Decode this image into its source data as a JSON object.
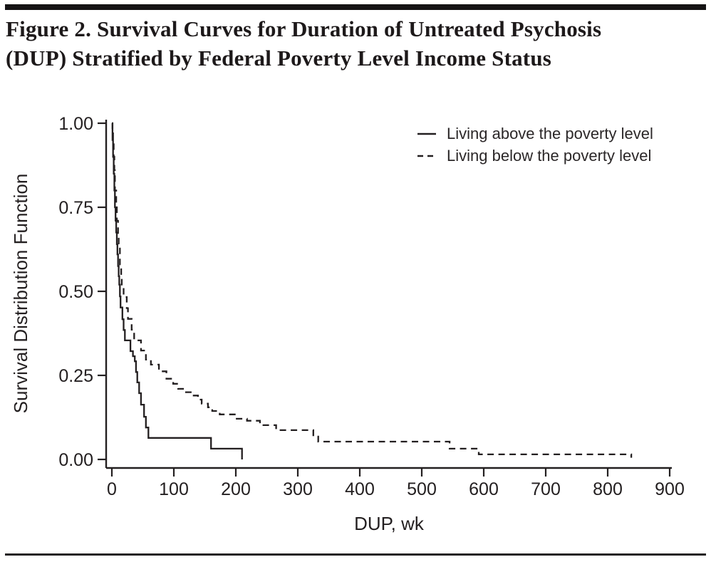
{
  "figure": {
    "title_line1": "Figure 2. Survival Curves for Duration of Untreated Psychosis",
    "title_line2": "(DUP) Stratified by Federal Poverty Level Income Status"
  },
  "colors": {
    "ink": "#231f20",
    "background": "#ffffff"
  },
  "chart_data": {
    "type": "line",
    "variant": "kaplan-meier-step-survival",
    "title": "Figure 2. Survival Curves for Duration of Untreated Psychosis (DUP) Stratified by Federal Poverty Level Income Status",
    "xlabel": "DUP, wk",
    "ylabel": "Survival Distribution Function",
    "xlim": [
      0,
      900
    ],
    "ylim": [
      0,
      1
    ],
    "x_ticks": [
      0,
      100,
      200,
      300,
      400,
      500,
      600,
      700,
      800,
      900
    ],
    "y_ticks": [
      {
        "value": 1.0,
        "label": "1.00"
      },
      {
        "value": 0.75,
        "label": "0.75"
      },
      {
        "value": 0.5,
        "label": "0.50"
      },
      {
        "value": 0.25,
        "label": "0.25"
      },
      {
        "value": 0.0,
        "label": "0.00"
      }
    ],
    "grid": false,
    "legend_position": "top-right-inside",
    "series": [
      {
        "name": "Living above the poverty level",
        "style": "solid",
        "points": [
          [
            0,
            1.0
          ],
          [
            1,
            0.95
          ],
          [
            2,
            0.9
          ],
          [
            3,
            0.85
          ],
          [
            4,
            0.8
          ],
          [
            5,
            0.75
          ],
          [
            6,
            0.71
          ],
          [
            7,
            0.675
          ],
          [
            8,
            0.64
          ],
          [
            9,
            0.61
          ],
          [
            10,
            0.575
          ],
          [
            11,
            0.545
          ],
          [
            12,
            0.52
          ],
          [
            13,
            0.485
          ],
          [
            14,
            0.452
          ],
          [
            17,
            0.417
          ],
          [
            19,
            0.385
          ],
          [
            21,
            0.354
          ],
          [
            30,
            0.322
          ],
          [
            34,
            0.307
          ],
          [
            37,
            0.292
          ],
          [
            39,
            0.26
          ],
          [
            41,
            0.229
          ],
          [
            44,
            0.197
          ],
          [
            47,
            0.163
          ],
          [
            52,
            0.127
          ],
          [
            55,
            0.095
          ],
          [
            59,
            0.064
          ],
          [
            160,
            0.032
          ],
          [
            210,
            0.0
          ]
        ]
      },
      {
        "name": "Living below the poverty level",
        "style": "dashed",
        "points": [
          [
            0,
            1.0
          ],
          [
            1,
            0.97
          ],
          [
            2,
            0.94
          ],
          [
            3,
            0.9
          ],
          [
            4,
            0.86
          ],
          [
            5,
            0.8
          ],
          [
            7,
            0.75
          ],
          [
            8,
            0.71
          ],
          [
            10,
            0.665
          ],
          [
            11,
            0.63
          ],
          [
            13,
            0.58
          ],
          [
            15,
            0.545
          ],
          [
            16,
            0.515
          ],
          [
            19,
            0.483
          ],
          [
            24,
            0.45
          ],
          [
            26,
            0.418
          ],
          [
            32,
            0.386
          ],
          [
            36,
            0.354
          ],
          [
            47,
            0.324
          ],
          [
            55,
            0.297
          ],
          [
            63,
            0.282
          ],
          [
            76,
            0.262
          ],
          [
            88,
            0.24
          ],
          [
            99,
            0.225
          ],
          [
            107,
            0.21
          ],
          [
            118,
            0.2
          ],
          [
            130,
            0.19
          ],
          [
            139,
            0.178
          ],
          [
            145,
            0.166
          ],
          [
            155,
            0.155
          ],
          [
            162,
            0.144
          ],
          [
            174,
            0.134
          ],
          [
            200,
            0.121
          ],
          [
            218,
            0.115
          ],
          [
            239,
            0.102
          ],
          [
            265,
            0.087
          ],
          [
            325,
            0.068
          ],
          [
            333,
            0.053
          ],
          [
            545,
            0.032
          ],
          [
            592,
            0.015
          ],
          [
            838,
            0.005
          ]
        ]
      }
    ]
  }
}
